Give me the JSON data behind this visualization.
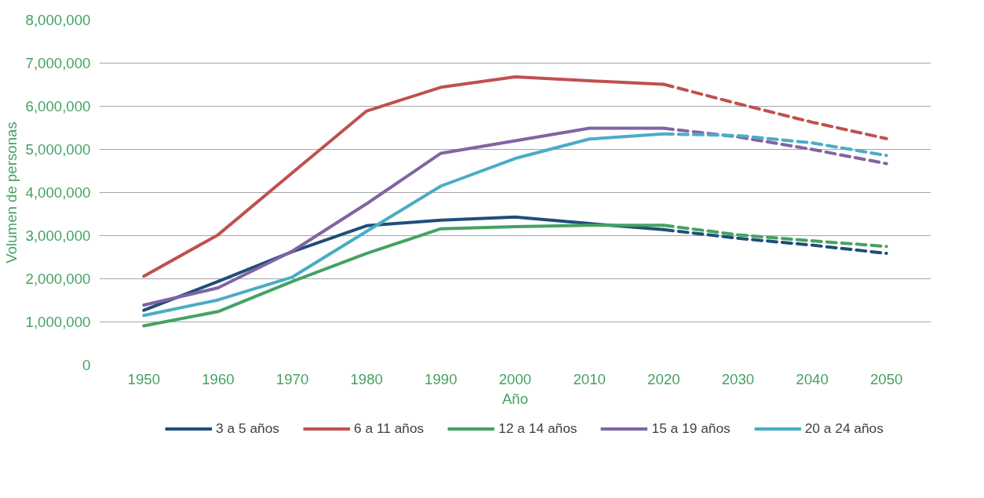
{
  "chart_data": {
    "type": "line",
    "xlabel": "Año",
    "ylabel": "Volumen de personas",
    "xlim": [
      1944,
      2056
    ],
    "ylim": [
      0,
      8000000
    ],
    "xticks": [
      1950,
      1960,
      1970,
      1980,
      1990,
      2000,
      2010,
      2020,
      2030,
      2040,
      2050
    ],
    "yticks": [
      {
        "value": 0,
        "label": "0"
      },
      {
        "value": 1000000,
        "label": "1,000,000"
      },
      {
        "value": 2000000,
        "label": "2,000,000"
      },
      {
        "value": 3000000,
        "label": "3,000,000"
      },
      {
        "value": 4000000,
        "label": "4,000,000"
      },
      {
        "value": 5000000,
        "label": "5,000,000"
      },
      {
        "value": 6000000,
        "label": "6,000,000"
      },
      {
        "value": 7000000,
        "label": "7,000,000"
      },
      {
        "value": 8000000,
        "label": "8,000,000"
      }
    ],
    "grid": "y",
    "legend": "bottom",
    "marker": "none",
    "series": [
      {
        "name": "3 a 5 años",
        "color": "#1f4e79",
        "line_style": "solid",
        "x": [
          1950,
          1960,
          1970,
          1980,
          1990,
          2000,
          2010,
          2020
        ],
        "values": [
          1270000,
          1940000,
          2630000,
          3230000,
          3360000,
          3430000,
          3280000,
          3140000
        ]
      },
      {
        "name": "6 a 11 años",
        "color": "#c0504d",
        "line_style": "solid",
        "x": [
          1950,
          1960,
          1970,
          1980,
          1990,
          2000,
          2010,
          2020
        ],
        "values": [
          2060000,
          3020000,
          4460000,
          5890000,
          6440000,
          6680000,
          6590000,
          6510000
        ]
      },
      {
        "name": "12 a 14 años",
        "color": "#45a263",
        "line_style": "solid",
        "x": [
          1950,
          1960,
          1970,
          1980,
          1990,
          2000,
          2010,
          2020
        ],
        "values": [
          910000,
          1240000,
          1940000,
          2590000,
          3160000,
          3210000,
          3240000,
          3240000
        ]
      },
      {
        "name": "15 a 19 años",
        "color": "#8064a2",
        "line_style": "solid",
        "x": [
          1950,
          1960,
          1970,
          1980,
          1990,
          2000,
          2010,
          2020
        ],
        "values": [
          1390000,
          1790000,
          2640000,
          3740000,
          4910000,
          5200000,
          5490000,
          5490000
        ]
      },
      {
        "name": "20 a 24 años",
        "color": "#4bacc6",
        "line_style": "solid",
        "x": [
          1950,
          1960,
          1970,
          1980,
          1990,
          2000,
          2010,
          2020
        ],
        "values": [
          1150000,
          1510000,
          2040000,
          3100000,
          4150000,
          4790000,
          5240000,
          5360000
        ]
      },
      {
        "color": "#1f4e79",
        "line_style": "dashed",
        "x": [
          2020,
          2030,
          2040,
          2050
        ],
        "values": [
          3140000,
          2940000,
          2780000,
          2590000
        ]
      },
      {
        "color": "#c0504d",
        "line_style": "dashed",
        "x": [
          2020,
          2030,
          2040,
          2050
        ],
        "values": [
          6510000,
          6060000,
          5630000,
          5250000
        ]
      },
      {
        "color": "#45a263",
        "line_style": "dashed",
        "x": [
          2020,
          2030,
          2040,
          2050
        ],
        "values": [
          3240000,
          3020000,
          2880000,
          2750000
        ]
      },
      {
        "color": "#8064a2",
        "line_style": "dashed",
        "x": [
          2020,
          2030,
          2040,
          2050
        ],
        "values": [
          5490000,
          5290000,
          5000000,
          4670000
        ]
      },
      {
        "color": "#4bacc6",
        "line_style": "dashed",
        "x": [
          2020,
          2030,
          2040,
          2050
        ],
        "values": [
          5360000,
          5320000,
          5150000,
          4860000
        ]
      }
    ]
  }
}
